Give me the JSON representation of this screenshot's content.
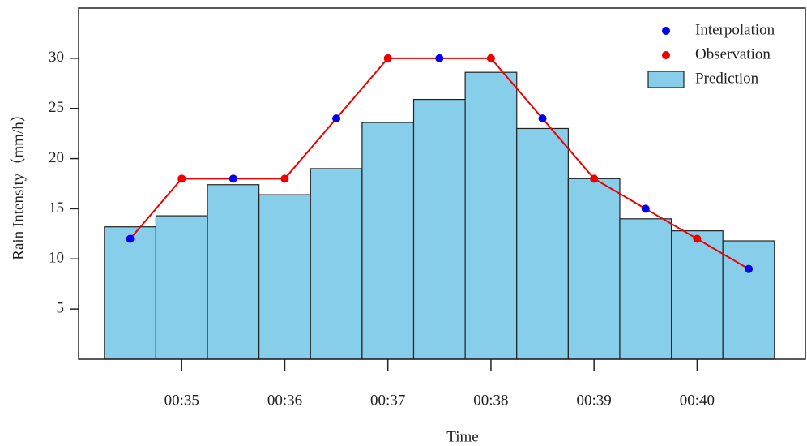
{
  "chart_data": {
    "type": "histogram",
    "y_label": "Rain Intensity（mm/h）",
    "x_label": "Time",
    "xlim": [
      34,
      41.05
    ],
    "xticks": [
      {
        "value": 35,
        "label": "00:35"
      },
      {
        "value": 36,
        "label": "00:36"
      },
      {
        "value": 37,
        "label": "00:37"
      },
      {
        "value": 38,
        "label": "00:38"
      },
      {
        "value": 39,
        "label": "00:39"
      },
      {
        "value": 40,
        "label": "00:40"
      }
    ],
    "ylim": [
      0,
      35
    ],
    "yticks": [
      5,
      10,
      15,
      20,
      25,
      30
    ],
    "legend": "top-right",
    "series": [
      {
        "name": "Interpolation",
        "type": "scatter",
        "color": "#0000ee",
        "x": [
          34.5,
          35.5,
          36.5,
          37.5,
          38.5,
          39.5,
          40.5
        ],
        "values": [
          12,
          18,
          24,
          30,
          24,
          15,
          9
        ]
      },
      {
        "name": "Observation",
        "type": "line",
        "color": "#ee0000",
        "x": [
          35,
          36,
          37,
          38,
          39,
          40
        ],
        "values": [
          18,
          18,
          30,
          30,
          18,
          12
        ]
      },
      {
        "name": "Prediction",
        "type": "histogram",
        "color": "#87ceeb",
        "bins": [
          34.25,
          34.75,
          35.25,
          35.75,
          36.25,
          36.75,
          37.25,
          37.75,
          38.25,
          38.75,
          39.25,
          39.75,
          40.25,
          40.75
        ],
        "values": [
          13.2,
          14.3,
          17.4,
          16.4,
          19,
          23.6,
          25.9,
          28.6,
          23,
          18,
          14,
          12.8,
          11.8
        ]
      }
    ]
  }
}
